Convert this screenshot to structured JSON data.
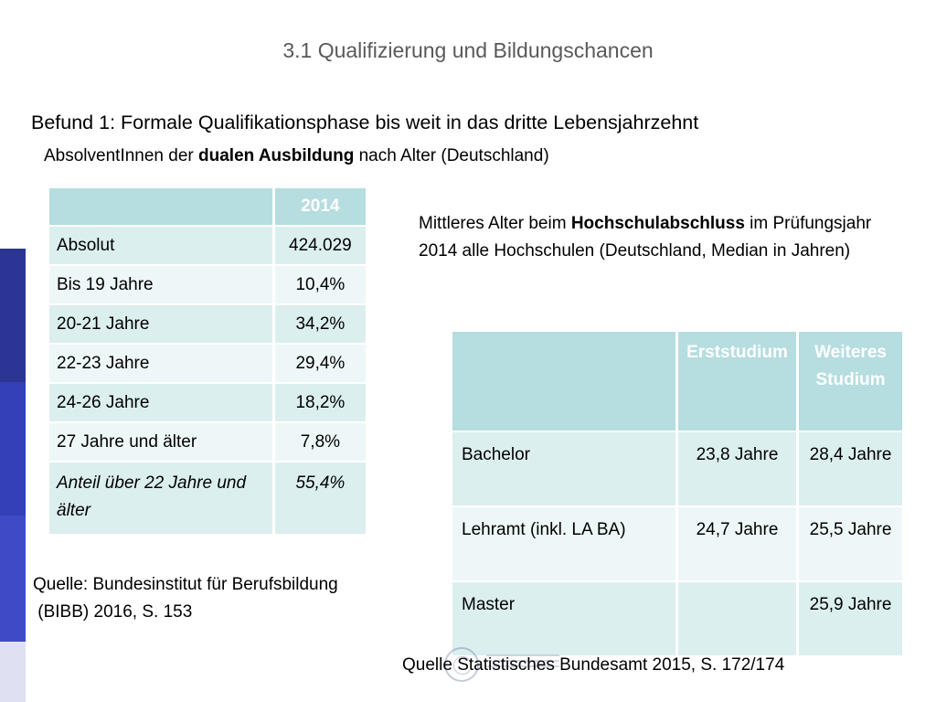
{
  "slide": {
    "title": "3.1 Qualifizierung und Bildungschancen",
    "finding": "Befund 1: Formale Qualifikationsphase bis weit in das dritte Lebensjahrzehnt",
    "subtitle1": {
      "pre": "AbsolventInnen der ",
      "bold": "dualen Ausbildung",
      "post": " nach Alter (Deutschland)"
    },
    "subtitle2": {
      "pre": "Mittleres Alter beim ",
      "bold": "Hochschulabschluss",
      "post": " im Prüfungsjahr 2014 alle Hochschulen (Deutschland, Median in Jahren)"
    },
    "source1_line1": "Quelle: Bundesinstitut für Berufsbildung",
    "source1_line2": " (BIBB) 2016, S. 153",
    "source2": "Quelle Statistisches Bundesamt 2015, S. 172/174"
  },
  "table1": {
    "header": [
      "",
      "2014"
    ],
    "rows": [
      [
        "Absolut",
        "424.029"
      ],
      [
        "Bis 19 Jahre",
        "10,4%"
      ],
      [
        "20-21 Jahre",
        "34,2%"
      ],
      [
        "22-23 Jahre",
        "29,4%"
      ],
      [
        "24-26 Jahre",
        "18,2%"
      ],
      [
        "27 Jahre und älter",
        "7,8%"
      ],
      [
        "Anteil über 22 Jahre und älter",
        "55,4%"
      ]
    ]
  },
  "table2": {
    "header": [
      "",
      "Erststudium",
      "Weiteres Studium"
    ],
    "rows": [
      [
        "Bachelor",
        "23,8 Jahre",
        "28,4 Jahre"
      ],
      [
        "Lehramt (inkl. LA BA)",
        "24,7 Jahre",
        "25,5 Jahre"
      ],
      [
        "Master",
        "",
        "25,9 Jahre"
      ]
    ]
  },
  "colors": {
    "header_bg": "#b6dde0",
    "row_odd": "#dcefef",
    "row_even": "#eef7f7",
    "accent_bar": "#3340b8",
    "title_gray": "#595959"
  },
  "icons": {
    "logo": "university-seal-logo"
  }
}
